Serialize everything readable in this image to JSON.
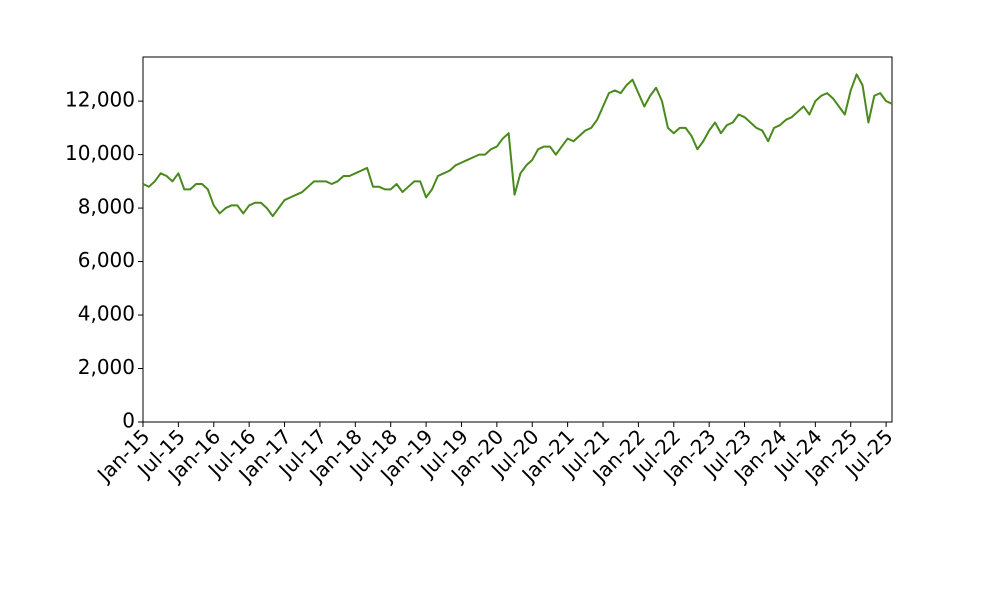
{
  "chart_data": {
    "type": "line",
    "x": [
      "2015-01",
      "2015-02",
      "2015-03",
      "2015-04",
      "2015-05",
      "2015-06",
      "2015-07",
      "2015-08",
      "2015-09",
      "2015-10",
      "2015-11",
      "2015-12",
      "2016-01",
      "2016-02",
      "2016-03",
      "2016-04",
      "2016-05",
      "2016-06",
      "2016-07",
      "2016-08",
      "2016-09",
      "2016-10",
      "2016-11",
      "2016-12",
      "2017-01",
      "2017-02",
      "2017-03",
      "2017-04",
      "2017-05",
      "2017-06",
      "2017-07",
      "2017-08",
      "2017-09",
      "2017-10",
      "2017-11",
      "2017-12",
      "2018-01",
      "2018-02",
      "2018-03",
      "2018-04",
      "2018-05",
      "2018-06",
      "2018-07",
      "2018-08",
      "2018-09",
      "2018-10",
      "2018-11",
      "2018-12",
      "2019-01",
      "2019-02",
      "2019-03",
      "2019-04",
      "2019-05",
      "2019-06",
      "2019-07",
      "2019-08",
      "2019-09",
      "2019-10",
      "2019-11",
      "2019-12",
      "2020-01",
      "2020-02",
      "2020-03",
      "2020-04",
      "2020-05",
      "2020-06",
      "2020-07",
      "2020-08",
      "2020-09",
      "2020-10",
      "2020-11",
      "2020-12",
      "2021-01",
      "2021-02",
      "2021-03",
      "2021-04",
      "2021-05",
      "2021-06",
      "2021-07",
      "2021-08",
      "2021-09",
      "2021-10",
      "2021-11",
      "2021-12",
      "2022-01",
      "2022-02",
      "2022-03",
      "2022-04",
      "2022-05",
      "2022-06",
      "2022-07",
      "2022-08",
      "2022-09",
      "2022-10",
      "2022-11",
      "2022-12",
      "2023-01",
      "2023-02",
      "2023-03",
      "2023-04",
      "2023-05",
      "2023-06",
      "2023-07",
      "2023-08",
      "2023-09",
      "2023-10",
      "2023-11",
      "2023-12",
      "2024-01",
      "2024-02",
      "2024-03",
      "2024-04",
      "2024-05",
      "2024-06",
      "2024-07",
      "2024-08",
      "2024-09",
      "2024-10",
      "2024-11",
      "2024-12",
      "2025-01",
      "2025-02",
      "2025-03",
      "2025-04",
      "2025-05",
      "2025-06",
      "2025-07",
      "2025-08"
    ],
    "series": [
      {
        "color": "#4a8a1c",
        "values": [
          8900,
          8800,
          9000,
          9300,
          9200,
          9000,
          9300,
          8700,
          8700,
          8900,
          8900,
          8700,
          8100,
          7800,
          8000,
          8100,
          8100,
          7800,
          8100,
          8200,
          8200,
          8000,
          7700,
          8000,
          8300,
          8400,
          8500,
          8600,
          8800,
          9000,
          9000,
          9000,
          8900,
          9000,
          9200,
          9200,
          9300,
          9400,
          9500,
          8800,
          8800,
          8700,
          8700,
          8900,
          8600,
          8800,
          9000,
          9000,
          8400,
          8700,
          9200,
          9300,
          9400,
          9600,
          9700,
          9800,
          9900,
          10000,
          10000,
          10200,
          10300,
          10600,
          10800,
          8500,
          9300,
          9600,
          9800,
          10200,
          10300,
          10300,
          10000,
          10300,
          10600,
          10500,
          10700,
          10900,
          11000,
          11300,
          11800,
          12300,
          12400,
          12300,
          12600,
          12800,
          12300,
          11800,
          12200,
          12500,
          12000,
          11000,
          10800,
          11000,
          11000,
          10700,
          10200,
          10500,
          10900,
          11200,
          10800,
          11100,
          11200,
          11500,
          11400,
          11200,
          11000,
          10900,
          10500,
          11000,
          11100,
          11300,
          11400,
          11600,
          11800,
          11500,
          12000,
          12200,
          12300,
          12100,
          11800,
          11500,
          12400,
          13000,
          12600,
          11200,
          12200,
          12300,
          12000,
          11900
        ]
      }
    ],
    "xlim": [
      "2015-01",
      "2025-08"
    ],
    "xticks": [
      {
        "value": "2015-01",
        "label": "Jan-15"
      },
      {
        "value": "2015-07",
        "label": "Jul-15"
      },
      {
        "value": "2016-01",
        "label": "Jan-16"
      },
      {
        "value": "2016-07",
        "label": "Jul-16"
      },
      {
        "value": "2017-01",
        "label": "Jan-17"
      },
      {
        "value": "2017-07",
        "label": "Jul-17"
      },
      {
        "value": "2018-01",
        "label": "Jan-18"
      },
      {
        "value": "2018-07",
        "label": "Jul-18"
      },
      {
        "value": "2019-01",
        "label": "Jan-19"
      },
      {
        "value": "2019-07",
        "label": "Jul-19"
      },
      {
        "value": "2020-01",
        "label": "Jan-20"
      },
      {
        "value": "2020-07",
        "label": "Jul-20"
      },
      {
        "value": "2021-01",
        "label": "Jan-21"
      },
      {
        "value": "2021-07",
        "label": "Jul-21"
      },
      {
        "value": "2022-01",
        "label": "Jan-22"
      },
      {
        "value": "2022-07",
        "label": "Jul-22"
      },
      {
        "value": "2023-01",
        "label": "Jan-23"
      },
      {
        "value": "2023-07",
        "label": "Jul-23"
      },
      {
        "value": "2024-01",
        "label": "Jan-24"
      },
      {
        "value": "2024-07",
        "label": "Jul-24"
      },
      {
        "value": "2025-01",
        "label": "Jan-25"
      },
      {
        "value": "2025-07",
        "label": "Jul-25"
      }
    ],
    "ylim": [
      0,
      13650
    ],
    "yticks": [
      0,
      {
        "value": 2000,
        "label": "2,000"
      },
      {
        "value": 4000,
        "label": "4,000"
      },
      {
        "value": 6000,
        "label": "6,000"
      },
      {
        "value": 8000,
        "label": "8,000"
      },
      {
        "value": 10000,
        "label": "10,000"
      },
      {
        "value": 12000,
        "label": "12,000"
      }
    ],
    "grid": false
  }
}
